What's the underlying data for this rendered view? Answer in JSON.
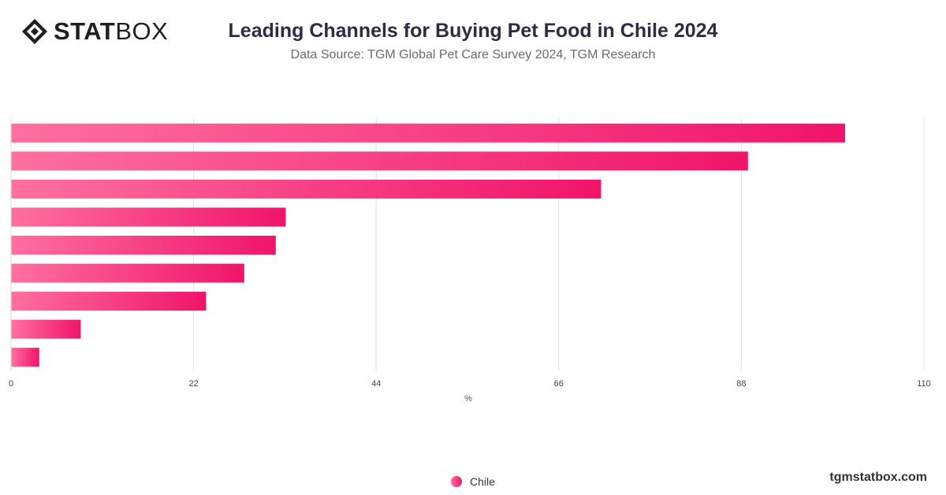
{
  "brand": {
    "bold": "STAT",
    "light": "BOX"
  },
  "header": {
    "title": "Leading Channels for Buying Pet Food in Chile 2024",
    "subtitle": "Data Source: TGM Global Pet Care Survey 2024, TGM Research"
  },
  "footer": {
    "site": "tgmstatbox.com"
  },
  "colors": {
    "bar_start": "#ff6fa0",
    "bar_end": "#f0146a",
    "grid": "#e0e0e0",
    "text": "#333333"
  },
  "chart_data": {
    "type": "bar",
    "orientation": "horizontal",
    "categories": [
      "",
      "",
      "",
      "",
      "",
      "",
      "",
      "",
      ""
    ],
    "series": [
      {
        "name": "Chile",
        "values": [
          100.5,
          88.8,
          71.1,
          33.1,
          31.9,
          28.1,
          23.5,
          8.4,
          3.4
        ]
      }
    ],
    "xlabel": "%",
    "xlim": [
      0,
      110
    ],
    "xticks": [
      0,
      22,
      44,
      66,
      88,
      110
    ],
    "grid": true,
    "legend": "bottom-center"
  }
}
